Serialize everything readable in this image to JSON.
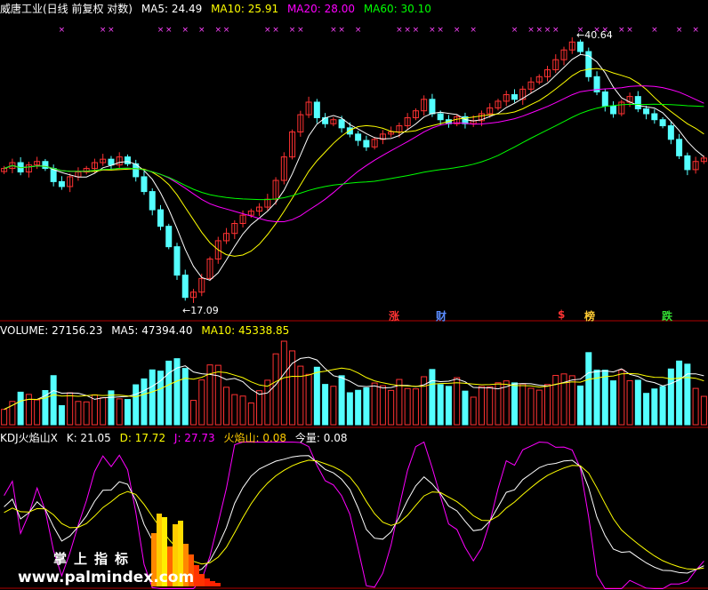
{
  "main_header": {
    "title": "威唐工业(日线 前复权 对数)",
    "ma5": "MA5: 24.49",
    "ma10": "MA10: 25.91",
    "ma20": "MA20: 28.00",
    "ma60": "MA60: 30.10"
  },
  "price_labels": {
    "high": "40.64",
    "low": "17.09"
  },
  "signals": [
    {
      "text": "涨",
      "color": "#ff3333"
    },
    {
      "text": "财",
      "color": "#5a8cff"
    },
    {
      "text": "$",
      "color": "#ff3333"
    },
    {
      "text": "榜",
      "color": "#ffcc33"
    },
    {
      "text": "跌",
      "color": "#33dd33"
    }
  ],
  "volume_header": {
    "volume": "VOLUME: 27156.23",
    "ma5": "MA5: 47394.40",
    "ma10": "MA10: 45338.85"
  },
  "kdj_header": {
    "name": "KDJ火焰山X",
    "k": "K: 21.05",
    "d": "D: 17.72",
    "j": "J: 27.73",
    "flame": "火焰山: 0.08",
    "today": "今量: 0.08"
  },
  "watermark": {
    "line1": "掌上指标",
    "line2": "www.palmindex.com"
  },
  "colors": {
    "up": "#ff3232",
    "down": "#54ffff",
    "ma5": "#ffffff",
    "ma10": "#ffff00",
    "ma20": "#ff00ff",
    "ma60": "#00ff00",
    "separator": "#b00000"
  },
  "chart_data": {
    "type": "candlestick",
    "scale": "log",
    "price_range": [
      17.09,
      40.64
    ],
    "closes": [
      26.5,
      27.0,
      26.2,
      26.8,
      27.1,
      26.5,
      25.4,
      25.0,
      25.8,
      26.2,
      26.5,
      27.0,
      27.3,
      26.8,
      27.5,
      26.9,
      25.8,
      24.6,
      23.2,
      22.0,
      20.6,
      18.8,
      17.5,
      17.8,
      18.6,
      19.8,
      21.0,
      21.5,
      22.2,
      22.8,
      23.1,
      23.4,
      24.0,
      25.5,
      27.5,
      29.8,
      31.5,
      32.8,
      31.2,
      30.6,
      31.0,
      30.2,
      29.6,
      29.0,
      28.4,
      29.1,
      29.6,
      29.8,
      30.4,
      31.2,
      31.9,
      33.1,
      31.6,
      31.0,
      30.6,
      31.3,
      30.6,
      30.9,
      31.6,
      32.2,
      32.9,
      33.6,
      33.1,
      34.2,
      35.0,
      35.6,
      36.4,
      37.6,
      38.8,
      39.8,
      38.6,
      35.6,
      33.9,
      32.4,
      31.6,
      32.8,
      33.4,
      32.1,
      31.6,
      31.0,
      30.4,
      29.1,
      27.6,
      26.4,
      27.1,
      27.4
    ],
    "volume": {
      "last": 27156.23,
      "ma5": 47394.4,
      "ma10": 45338.85
    },
    "moving_averages": {
      "ma5": 24.49,
      "ma10": 25.91,
      "ma20": 28.0,
      "ma60": 30.1
    },
    "kdj": {
      "k": 21.05,
      "d": 17.72,
      "j": 27.73,
      "flame": 0.08,
      "today_volume": 0.08
    }
  }
}
